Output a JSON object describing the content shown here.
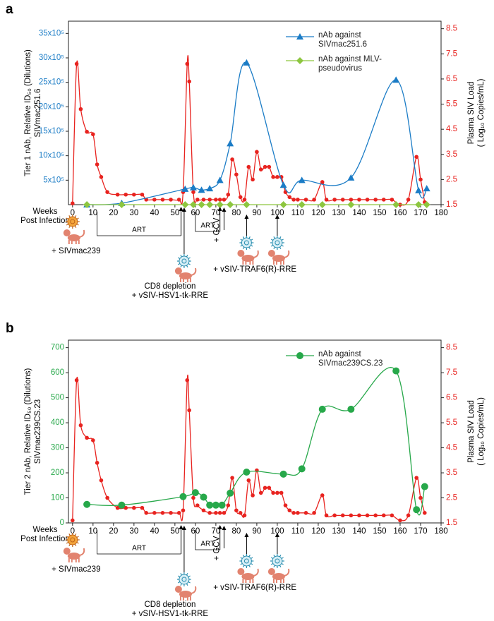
{
  "chart_data": [
    {
      "type": "line",
      "panel_label": "a",
      "y_label": [
        "Tier 1 nAb, Relative ID₅₀ (Dilutions)",
        "SIVmac251.6"
      ],
      "y2_label": [
        "Plasma SIV Load",
        "( Log₁₀ Copies/mL)"
      ],
      "xlim": [
        -2,
        180
      ],
      "xticks": [
        0,
        10,
        20,
        30,
        40,
        50,
        60,
        70,
        80,
        90,
        100,
        110,
        120,
        130,
        140,
        150,
        160,
        170,
        180
      ],
      "ylim": [
        0,
        3750000
      ],
      "yticks": [
        {
          "value": 500000,
          "label": "5x10⁵"
        },
        {
          "value": 1000000,
          "label": "10x10⁵"
        },
        {
          "value": 1500000,
          "label": "15x10⁵"
        },
        {
          "value": 2000000,
          "label": "20x10⁵"
        },
        {
          "value": 2500000,
          "label": "25x10⁵"
        },
        {
          "value": 3000000,
          "label": "30x10⁵"
        },
        {
          "value": 3500000,
          "label": "35x10⁵"
        }
      ],
      "ytick_color": "#1b7cc6",
      "y2lim": [
        1.5,
        8.8
      ],
      "y2ticks": [
        1.5,
        2.5,
        3.5,
        4.5,
        5.5,
        6.5,
        7.5,
        8.5
      ],
      "y2tick_color": "#e8231f",
      "annotations": [
        "Weeks",
        "Post Infection",
        "ART",
        "ART",
        "+ SIVmac239",
        "CD8 depletion",
        "+ vSIV-HSV1-tk-RRE",
        "+ GCV",
        "+ vSIV-TRAF6(R)-RRE"
      ],
      "series": [
        {
          "axis": "y2",
          "color": "#e8231f",
          "marker": "circle",
          "x": [
            0,
            2,
            4,
            7,
            10,
            12,
            14,
            17,
            22,
            26,
            30,
            34,
            36,
            40,
            44,
            48,
            52,
            54,
            56,
            57,
            59,
            61,
            64,
            67,
            70,
            72,
            74,
            76,
            78,
            80,
            82,
            84,
            86,
            88,
            90,
            92,
            94,
            96,
            98,
            100,
            102,
            104,
            106,
            108,
            110,
            114,
            118,
            122,
            124,
            128,
            132,
            136,
            140,
            144,
            148,
            152,
            156,
            160,
            164,
            168,
            170,
            172
          ],
          "values": [
            1.55,
            7.1,
            5.3,
            4.4,
            4.3,
            3.1,
            2.6,
            2.0,
            1.9,
            1.9,
            1.9,
            1.9,
            1.7,
            1.7,
            1.7,
            1.7,
            1.7,
            2.0,
            7.1,
            6.4,
            2.0,
            1.7,
            1.7,
            1.7,
            1.7,
            1.7,
            1.7,
            1.9,
            3.3,
            2.7,
            1.8,
            1.7,
            3.0,
            2.5,
            3.6,
            2.9,
            3.0,
            3.0,
            2.6,
            2.6,
            2.6,
            2.0,
            1.8,
            1.7,
            1.7,
            1.7,
            1.7,
            2.4,
            1.7,
            1.7,
            1.7,
            1.7,
            1.7,
            1.7,
            1.7,
            1.7,
            1.7,
            1.5,
            1.7,
            3.4,
            2.5,
            1.6
          ]
        },
        {
          "name": "nAb against SIVmac251.6",
          "color": "#1b7cc6",
          "marker": "triangle",
          "x": [
            7,
            24,
            55,
            59,
            63,
            67,
            72,
            77,
            85,
            103,
            112,
            136,
            158,
            169,
            173
          ],
          "values": [
            0,
            30000,
            320000,
            350000,
            300000,
            330000,
            500000,
            1250000,
            2900000,
            400000,
            500000,
            550000,
            2550000,
            290000,
            330000
          ]
        },
        {
          "name": "nAb against MLV-pseudovirus",
          "color": "#8dc63f",
          "marker": "diamond",
          "x": [
            7,
            24,
            55,
            59,
            63,
            67,
            72,
            77,
            85,
            103,
            112,
            122,
            136,
            158,
            169,
            173
          ],
          "values": [
            0,
            0,
            0,
            0,
            0,
            0,
            0,
            0,
            0,
            0,
            0,
            0,
            0,
            0,
            0,
            0
          ]
        }
      ]
    },
    {
      "type": "line",
      "panel_label": "b",
      "y_label": [
        "Tier 2 nAb, Relative ID₅₀ (Dilutions)",
        "SIVmac239CS.23"
      ],
      "y2_label": [
        "Plasma SIV Load",
        "( Log₁₀ Copies/mL)"
      ],
      "xlim": [
        -2,
        180
      ],
      "xticks": [
        0,
        10,
        20,
        30,
        40,
        50,
        60,
        70,
        80,
        90,
        100,
        110,
        120,
        130,
        140,
        150,
        160,
        170,
        180
      ],
      "ylim": [
        0,
        730
      ],
      "yticks": [
        0,
        100,
        200,
        300,
        400,
        500,
        600,
        700
      ],
      "ytick_color": "#27a84a",
      "y2lim": [
        1.5,
        8.8
      ],
      "y2ticks": [
        1.5,
        2.5,
        3.5,
        4.5,
        5.5,
        6.5,
        7.5,
        8.5
      ],
      "y2tick_color": "#e8231f",
      "annotations": [
        "Weeks",
        "Post Infection",
        "ART",
        "ART",
        "+ SIVmac239",
        "CD8 depletion",
        "+ vSIV-HSV1-tk-RRE",
        "+ GCV",
        "+ vSIV-TRAF6(R)-RRE"
      ],
      "series": [
        {
          "axis": "y2",
          "color": "#e8231f",
          "marker": "circle",
          "x": [
            0,
            2,
            4,
            7,
            10,
            12,
            14,
            17,
            22,
            26,
            30,
            34,
            36,
            40,
            44,
            48,
            52,
            54,
            56,
            57,
            59,
            61,
            64,
            67,
            70,
            72,
            74,
            76,
            78,
            80,
            82,
            84,
            86,
            88,
            90,
            92,
            94,
            96,
            98,
            100,
            102,
            104,
            106,
            108,
            110,
            114,
            118,
            122,
            124,
            128,
            132,
            136,
            140,
            144,
            148,
            152,
            156,
            160,
            164,
            168,
            170,
            172
          ],
          "values": [
            1.6,
            7.2,
            5.4,
            4.9,
            4.8,
            3.9,
            3.2,
            2.5,
            2.1,
            2.1,
            2.1,
            2.1,
            1.9,
            1.9,
            1.9,
            1.9,
            1.9,
            2.0,
            7.2,
            6.0,
            2.5,
            2.2,
            2.0,
            1.9,
            1.9,
            1.9,
            1.9,
            2.2,
            3.3,
            2.0,
            1.9,
            1.8,
            3.2,
            2.6,
            3.6,
            2.7,
            2.9,
            2.9,
            2.7,
            2.7,
            2.7,
            2.2,
            2.0,
            1.9,
            1.9,
            1.9,
            1.9,
            2.6,
            1.8,
            1.8,
            1.8,
            1.8,
            1.8,
            1.8,
            1.8,
            1.8,
            1.8,
            1.6,
            1.8,
            3.3,
            2.5,
            1.9
          ]
        },
        {
          "name": "nAb against SIVmac239CS.23",
          "color": "#27a84a",
          "marker": "circle-large",
          "x": [
            7,
            24,
            54,
            60,
            64,
            67,
            70,
            73,
            77,
            85,
            103,
            112,
            122,
            136,
            158,
            168,
            172
          ],
          "values": [
            74,
            71,
            105,
            121,
            103,
            71,
            71,
            71,
            119,
            203,
            195,
            216,
            454,
            454,
            607,
            53,
            145
          ]
        }
      ]
    }
  ]
}
